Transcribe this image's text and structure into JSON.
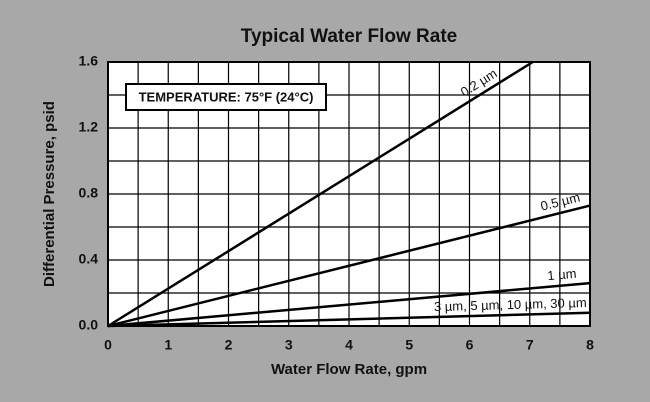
{
  "chart_data": {
    "type": "line",
    "title": "Typical Water Flow Rate",
    "x_label": "Water Flow Rate, gpm",
    "y_label": "Differential Pressure, psid",
    "annotation": "TEMPERATURE: 75°F (24°C)",
    "xlim": [
      0,
      8
    ],
    "ylim": [
      0,
      1.6
    ],
    "xticks": [
      0,
      1,
      2,
      3,
      4,
      5,
      6,
      7,
      8
    ],
    "yticks": [
      {
        "value": 0,
        "label": "0.0"
      },
      0.4,
      0.8,
      1.2,
      1.6
    ],
    "xgrid": [
      0.5,
      1,
      1.5,
      2,
      2.5,
      3,
      3.5,
      4,
      4.5,
      5,
      5.5,
      6,
      6.5,
      7,
      7.5
    ],
    "ygrid": [
      0.2,
      0.4,
      0.6,
      0.8,
      1.0,
      1.2,
      1.4
    ],
    "series": [
      {
        "name": "0.2 µm",
        "color": "#000000",
        "x": [
          0,
          7.05
        ],
        "values": [
          0,
          1.6
        ]
      },
      {
        "name": "0.5 µm",
        "color": "#000000",
        "x": [
          0,
          8
        ],
        "values": [
          0,
          0.73
        ]
      },
      {
        "name": "1 µm",
        "color": "#000000",
        "x": [
          0,
          8
        ],
        "values": [
          0,
          0.26
        ]
      },
      {
        "name": "3 µm, 5 µm, 10 µm, 30 µm",
        "color": "#000000",
        "x": [
          0,
          8
        ],
        "values": [
          0,
          0.08
        ]
      }
    ]
  }
}
